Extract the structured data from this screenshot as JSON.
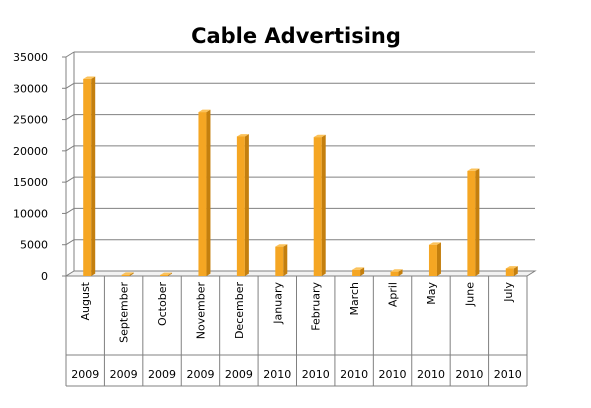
{
  "chart_data": {
    "type": "bar",
    "title": "Cable Advertising",
    "xlabel": "",
    "ylabel": "",
    "ylim": [
      0,
      35000
    ],
    "yticks": [
      "0",
      "5000",
      "10000",
      "15000",
      "20000",
      "25000",
      "30000",
      "35000"
    ],
    "categories": [
      {
        "month": "August",
        "year": "2009"
      },
      {
        "month": "September",
        "year": "2009"
      },
      {
        "month": "October",
        "year": "2009"
      },
      {
        "month": "November",
        "year": "2009"
      },
      {
        "month": "December",
        "year": "2009"
      },
      {
        "month": "January",
        "year": "2010"
      },
      {
        "month": "February",
        "year": "2010"
      },
      {
        "month": "March",
        "year": "2010"
      },
      {
        "month": "April",
        "year": "2010"
      },
      {
        "month": "May",
        "year": "2010"
      },
      {
        "month": "June",
        "year": "2010"
      },
      {
        "month": "July",
        "year": "2010"
      }
    ],
    "values": [
      31500,
      200,
      100,
      26200,
      22300,
      4700,
      22200,
      1000,
      700,
      5000,
      16800,
      1200
    ],
    "grid": true,
    "legend": "none",
    "colors": {
      "bar": "#f5a623",
      "bar_side": "#c47f0e",
      "bar_top": "#fbc25a",
      "grid": "#808080",
      "axis": "#808080"
    }
  }
}
